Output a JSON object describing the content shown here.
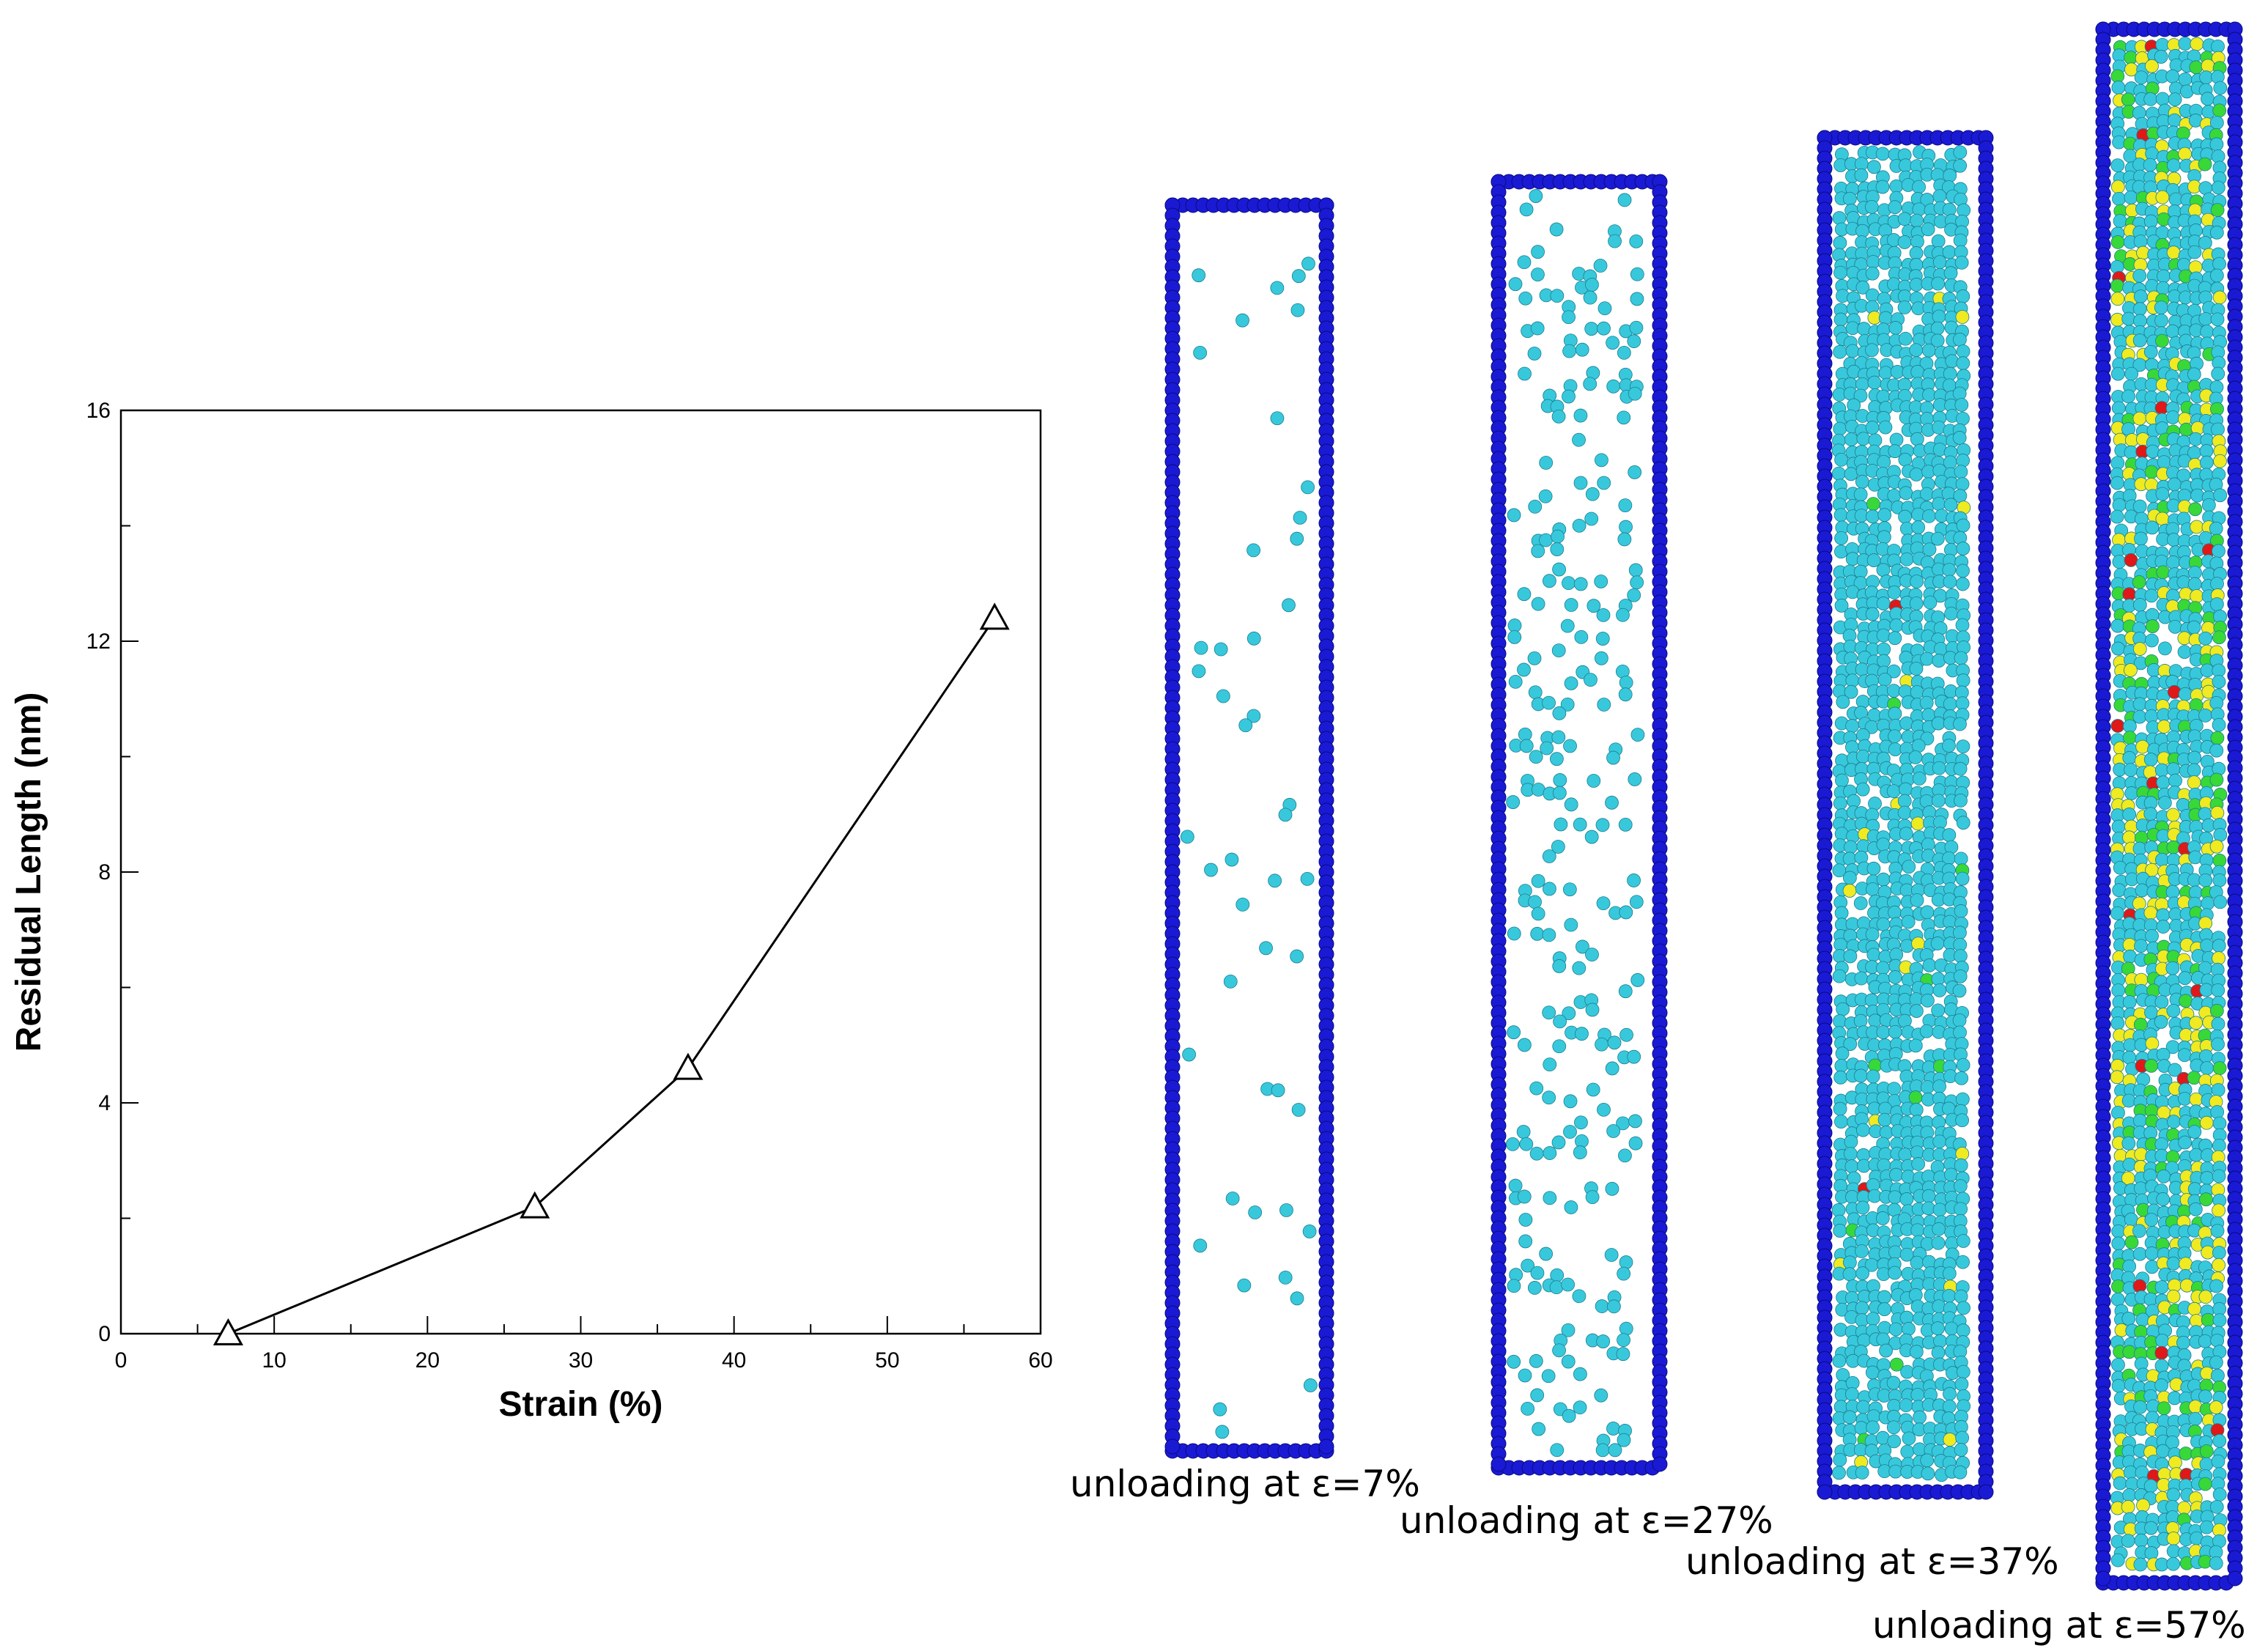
{
  "chart_data": {
    "type": "line",
    "title": "",
    "xlabel": "Strain (%)",
    "ylabel": "Residual Length (nm)",
    "xlim": [
      0,
      60
    ],
    "ylim": [
      0,
      16
    ],
    "x_ticks": [
      0,
      10,
      20,
      30,
      40,
      50,
      60
    ],
    "y_ticks": [
      0,
      4,
      8,
      12,
      16
    ],
    "x_minor_step": 5,
    "y_minor_step": 2,
    "grid": false,
    "marker": "open-triangle",
    "line_color": "#000000",
    "series": [
      {
        "x": [
          7,
          27,
          37,
          57
        ],
        "y": [
          0.0,
          2.2,
          4.6,
          12.4
        ]
      }
    ]
  },
  "snapshots": [
    {
      "caption": "unloading at ε=7%",
      "density": 0.03,
      "disorder": 0.0
    },
    {
      "caption": "unloading at ε=27%",
      "density": 0.18,
      "disorder": 0.0
    },
    {
      "caption": "unloading at ε=37%",
      "density": 0.9,
      "disorder": 0.03
    },
    {
      "caption": "unloading at ε=57%",
      "density": 0.95,
      "disorder": 0.35
    }
  ],
  "colors": {
    "surface_atoms": "#1a1ad4",
    "interior_atoms": "#38c8dc",
    "green_atoms": "#38d838",
    "yellow_atoms": "#f0ea20",
    "red_atoms": "#e01818"
  }
}
